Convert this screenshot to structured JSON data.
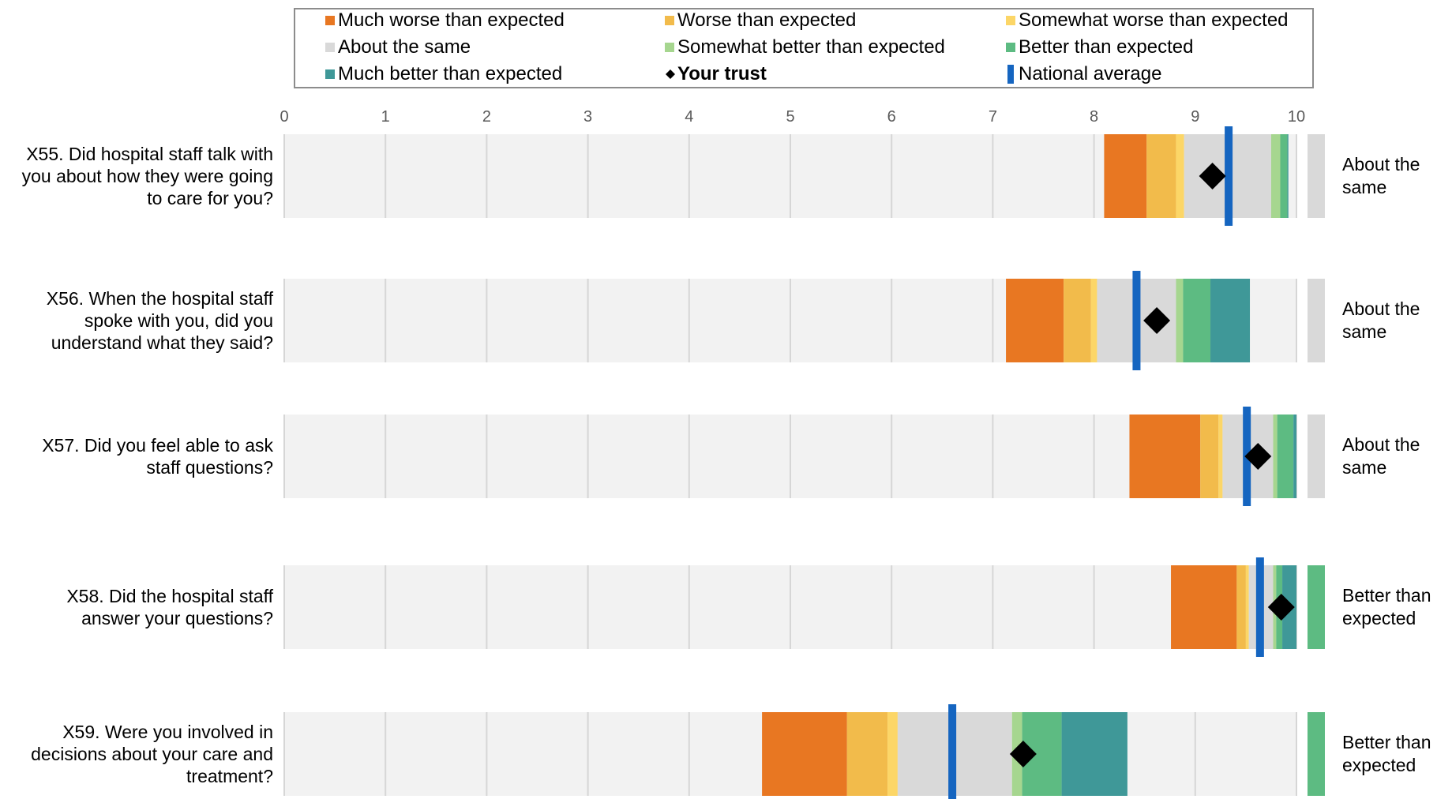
{
  "legend": {
    "items": [
      {
        "label": "Much worse than expected",
        "color": "#e87722",
        "symbol": "square"
      },
      {
        "label": "Worse than expected",
        "color": "#f2bb4b",
        "symbol": "square"
      },
      {
        "label": "Somewhat worse than expected",
        "color": "#fcd667",
        "symbol": "square"
      },
      {
        "label": "About the same",
        "color": "#d9d9d9",
        "symbol": "square"
      },
      {
        "label": "Somewhat better than expected",
        "color": "#a6d68f",
        "symbol": "square"
      },
      {
        "label": "Better than expected",
        "color": "#5dbb82",
        "symbol": "square"
      },
      {
        "label": "Much better than expected",
        "color": "#3f9898",
        "symbol": "square"
      },
      {
        "label": "Your trust",
        "color": "#000000",
        "symbol": "diamond",
        "bold": true
      },
      {
        "label": "National average",
        "color": "#1565c0",
        "symbol": "line"
      }
    ]
  },
  "chart_data": {
    "type": "bar",
    "xlim": [
      0,
      10
    ],
    "x_ticks": [
      "0",
      "1",
      "2",
      "3",
      "4",
      "5",
      "6",
      "7",
      "8",
      "9",
      "10"
    ],
    "grid": true,
    "legend_position": "top",
    "background_band_color": "#f2f2f2",
    "categories": [
      "X55. Did hospital staff talk with you about how they were going to care for you?",
      "X56. When the hospital staff spoke with you, did you understand what they said?",
      "X57. Did you feel able to ask staff questions?",
      "X58. Did the hospital staff answer your questions?",
      "X59. Were you involved in decisions about your care and treatment?"
    ],
    "rows": [
      {
        "question": "X55. Did hospital staff talk with you about how they were going to care for you?",
        "bands": [
          8.1,
          8.52,
          8.81,
          8.89,
          9.75,
          9.84,
          9.91,
          9.92
        ],
        "your_trust": 9.17,
        "national_average": 9.33,
        "outcome": "About the same",
        "outcome_color": "#d9d9d9"
      },
      {
        "question": "X56. When the hospital staff spoke with you, did you understand what they said?",
        "bands": [
          7.13,
          7.7,
          7.97,
          8.03,
          8.81,
          8.88,
          9.15,
          9.54
        ],
        "your_trust": 8.62,
        "national_average": 8.42,
        "outcome": "About the same",
        "outcome_color": "#d9d9d9"
      },
      {
        "question": "X57. Did you feel able to ask staff questions?",
        "bands": [
          8.35,
          9.05,
          9.23,
          9.27,
          9.77,
          9.81,
          9.97,
          10.0
        ],
        "your_trust": 9.62,
        "national_average": 9.51,
        "outcome": "About the same",
        "outcome_color": "#d9d9d9"
      },
      {
        "question": "X58. Did the hospital staff answer your questions?",
        "bands": [
          8.76,
          9.41,
          9.5,
          9.53,
          9.77,
          9.8,
          9.86,
          10.0
        ],
        "your_trust": 9.85,
        "national_average": 9.64,
        "outcome": "Better than expected",
        "outcome_color": "#5dbb82"
      },
      {
        "question": "X59. Were you involved in decisions about your care and treatment?",
        "bands": [
          4.72,
          5.56,
          5.96,
          6.06,
          7.19,
          7.29,
          7.68,
          8.33
        ],
        "your_trust": 7.3,
        "national_average": 6.6,
        "outcome": "Better than expected",
        "outcome_color": "#5dbb82"
      }
    ]
  },
  "rows_text": [
    {
      "label_lines": [
        "X55. Did hospital staff talk with",
        "you about how they were going",
        "to care for you?"
      ],
      "outcome_lines": [
        "About the",
        "same"
      ]
    },
    {
      "label_lines": [
        "X56. When the hospital staff",
        "spoke with you, did you",
        "understand what they said?"
      ],
      "outcome_lines": [
        "About the",
        "same"
      ]
    },
    {
      "label_lines": [
        "X57. Did you feel able to ask",
        "staff questions?"
      ],
      "outcome_lines": [
        "About the",
        "same"
      ]
    },
    {
      "label_lines": [
        "X58. Did the hospital staff",
        "answer your questions?"
      ],
      "outcome_lines": [
        "Better than",
        "expected"
      ]
    },
    {
      "label_lines": [
        "X59. Were you involved in",
        "decisions about your care and",
        "treatment?"
      ],
      "outcome_lines": [
        "Better than",
        "expected"
      ]
    }
  ]
}
